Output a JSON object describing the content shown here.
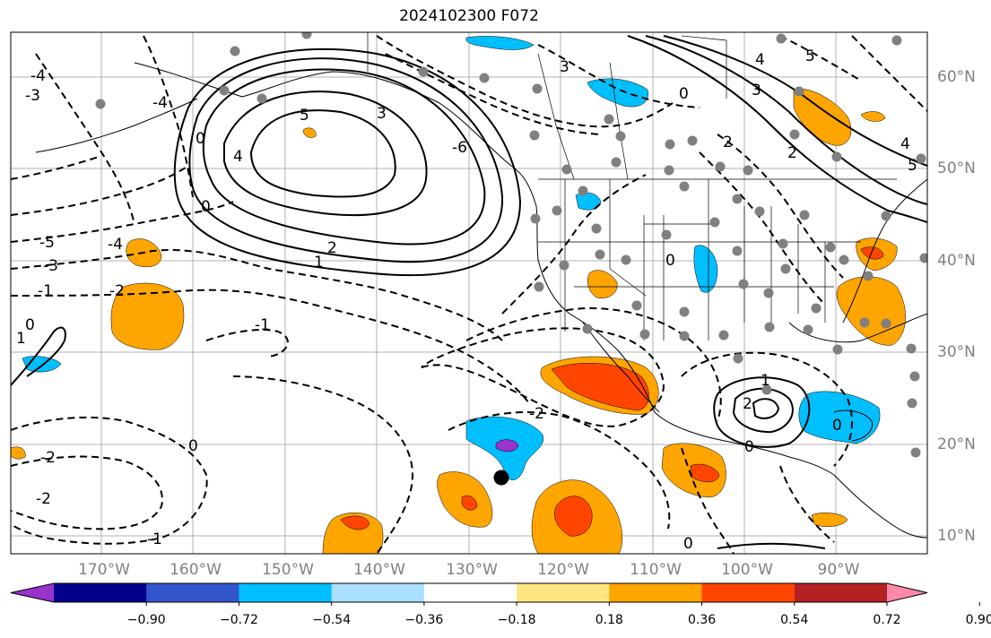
{
  "title": "2024102300 F072",
  "map": {
    "lon_ticks": [
      "170°W",
      "160°W",
      "150°W",
      "140°W",
      "130°W",
      "120°W",
      "110°W",
      "100°W",
      "90°W"
    ],
    "lat_ticks": [
      "60°N",
      "50°N",
      "40°N",
      "30°N",
      "20°N",
      "10°N"
    ],
    "contour_labels": [
      "-5",
      "-4",
      "-3",
      "-2",
      "-1",
      "0",
      "1",
      "2",
      "3",
      "4",
      "5"
    ],
    "grid": true,
    "layers": [
      "coastlines",
      "US state borders",
      "solid contours (positive)",
      "dashed contours (negative)",
      "shaded anomalies",
      "gray station dots"
    ]
  },
  "colorbar": {
    "ticks": [
      "−0.90",
      "−0.72",
      "−0.54",
      "−0.36",
      "−0.18",
      "0.18",
      "0.36",
      "0.54",
      "0.72",
      "0.90"
    ],
    "colors": [
      "#9933cc",
      "#00008b",
      "#3355cc",
      "#00bfff",
      "#aadfff",
      "#ffffff",
      "#ffe680",
      "#ffa500",
      "#ff4500",
      "#b22222",
      "#ff88aa"
    ]
  }
}
